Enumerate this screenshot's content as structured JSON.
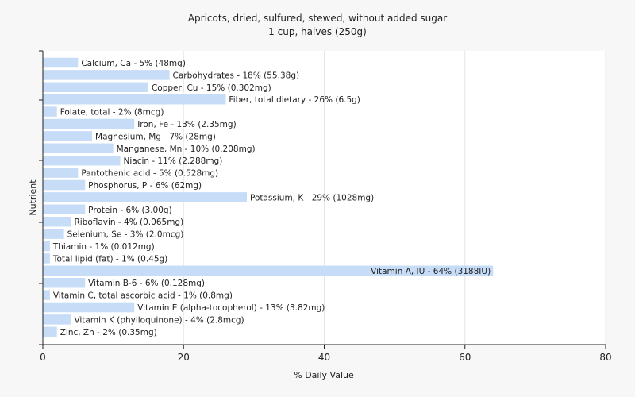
{
  "chart_data": {
    "type": "bar",
    "orientation": "horizontal",
    "title": "Apricots, dried, sulfured, stewed, without added sugar",
    "subtitle": "1 cup, halves (250g)",
    "xlabel": "% Daily Value",
    "ylabel": "Nutrient",
    "xlim": [
      0,
      80
    ],
    "xticks": [
      0,
      20,
      40,
      60,
      80
    ],
    "grid": true,
    "bar_color": "#c6dcf7",
    "categories": [
      "Calcium, Ca",
      "Carbohydrates",
      "Copper, Cu",
      "Fiber, total dietary",
      "Folate, total",
      "Iron, Fe",
      "Magnesium, Mg",
      "Manganese, Mn",
      "Niacin",
      "Pantothenic acid",
      "Phosphorus, P",
      "Potassium, K",
      "Protein",
      "Riboflavin",
      "Selenium, Se",
      "Thiamin",
      "Total lipid (fat)",
      "Vitamin A, IU",
      "Vitamin B-6",
      "Vitamin C, total ascorbic acid",
      "Vitamin E (alpha-tocopherol)",
      "Vitamin K (phylloquinone)",
      "Zinc, Zn"
    ],
    "values": [
      5,
      18,
      15,
      26,
      2,
      13,
      7,
      10,
      11,
      5,
      6,
      29,
      6,
      4,
      3,
      1,
      1,
      64,
      6,
      1,
      13,
      4,
      2
    ],
    "labels": [
      "Calcium, Ca - 5% (48mg)",
      "Carbohydrates - 18% (55.38g)",
      "Copper, Cu - 15% (0.302mg)",
      "Fiber, total dietary - 26% (6.5g)",
      "Folate, total - 2% (8mcg)",
      "Iron, Fe - 13% (2.35mg)",
      "Magnesium, Mg - 7% (28mg)",
      "Manganese, Mn - 10% (0.208mg)",
      "Niacin - 11% (2.288mg)",
      "Pantothenic acid - 5% (0.528mg)",
      "Phosphorus, P - 6% (62mg)",
      "Potassium, K - 29% (1028mg)",
      "Protein - 6% (3.00g)",
      "Riboflavin - 4% (0.065mg)",
      "Selenium, Se - 3% (2.0mcg)",
      "Thiamin - 1% (0.012mg)",
      "Total lipid (fat) - 1% (0.45g)",
      "Vitamin A, IU - 64% (3188IU)",
      "Vitamin B-6 - 6% (0.128mg)",
      "Vitamin C, total ascorbic acid - 1% (0.8mg)",
      "Vitamin E (alpha-tocopherol) - 13% (3.82mg)",
      "Vitamin K (phylloquinone) - 4% (2.8mcg)",
      "Zinc, Zn - 2% (0.35mg)"
    ]
  }
}
